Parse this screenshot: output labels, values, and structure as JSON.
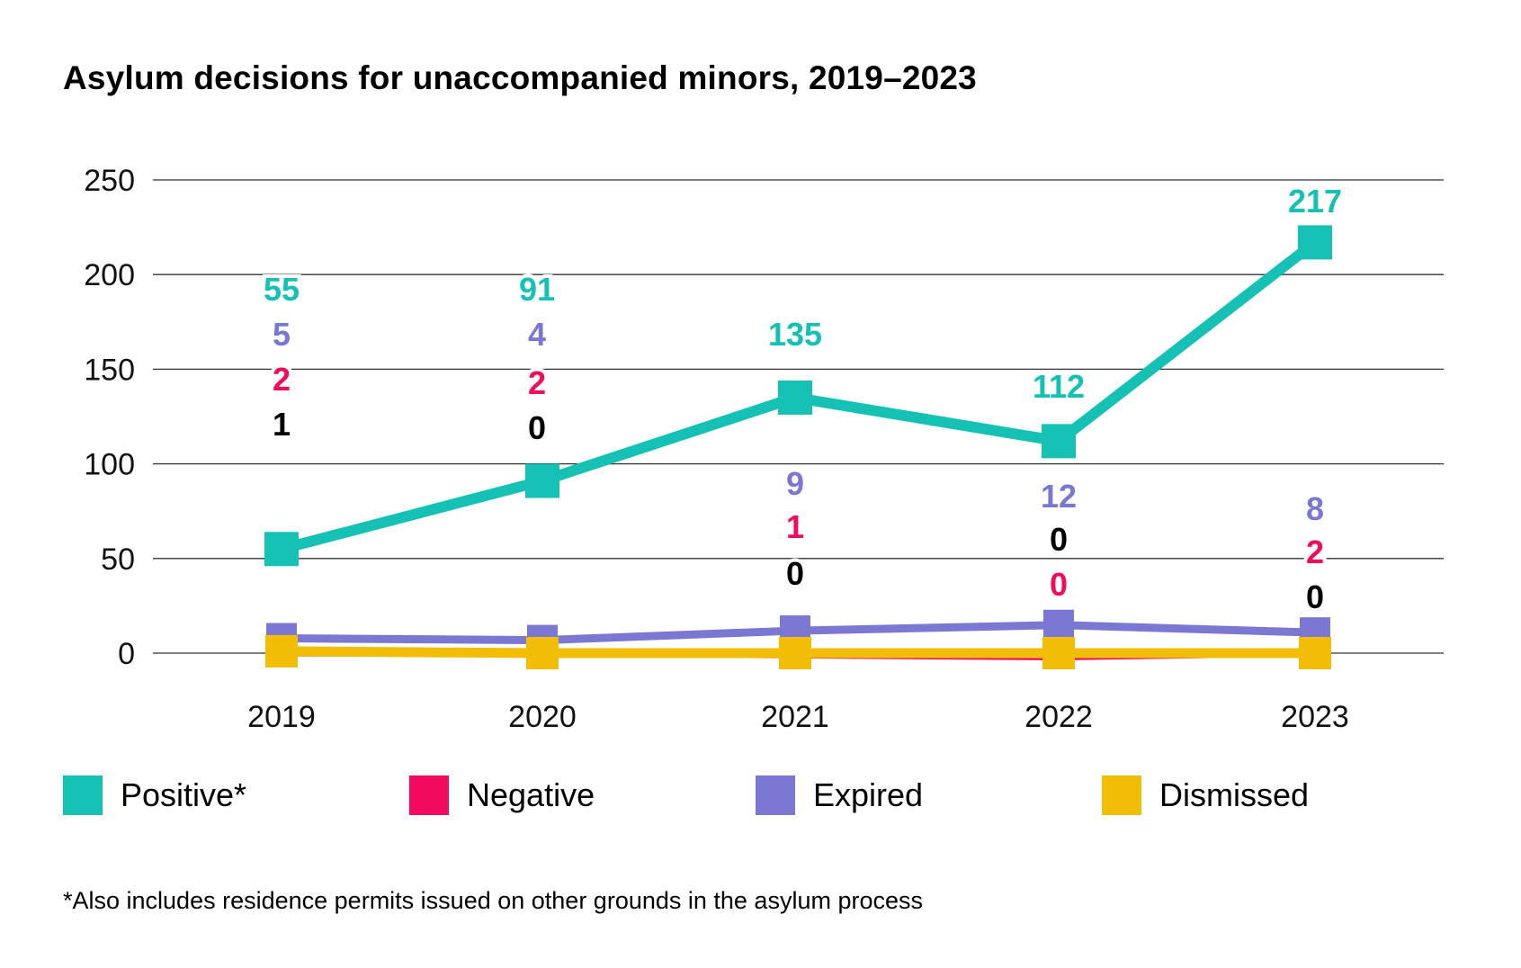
{
  "title": "Asylum decisions for unaccompanied minors, 2019–2023",
  "footnote": "*Also includes residence permits issued on other grounds in the asylum process",
  "legend": {
    "positive": "Positive*",
    "negative": "Negative",
    "expired": "Expired",
    "dismissed": "Dismissed"
  },
  "colors": {
    "positive": "#14c1b4",
    "negative": "#f20a5f",
    "expired": "#7a78d2",
    "dismissed": "#f2bd05"
  },
  "chart_data": {
    "type": "line",
    "title": "Asylum decisions for unaccompanied minors, 2019–2023",
    "categories": [
      "2019",
      "2020",
      "2021",
      "2022",
      "2023"
    ],
    "ylim": [
      0,
      250
    ],
    "yticks": [
      "0",
      "50",
      "100",
      "150",
      "200",
      "250"
    ],
    "grid": true,
    "legend_position": "bottom",
    "series": [
      {
        "key": "positive",
        "name": "Positive*",
        "color": "#14c1b4",
        "values": [
          55,
          91,
          135,
          112,
          217
        ]
      },
      {
        "key": "negative",
        "name": "Negative",
        "color": "#f20a5f",
        "values": [
          2,
          2,
          1,
          0,
          2
        ]
      },
      {
        "key": "expired",
        "name": "Expired",
        "color": "#7a78d2",
        "values": [
          5,
          4,
          9,
          12,
          8
        ]
      },
      {
        "key": "dismissed",
        "name": "Dismissed",
        "color": "#f2bd05",
        "values": [
          1,
          0,
          0,
          0,
          0
        ]
      }
    ],
    "data_labels": [
      [
        "55",
        "5",
        "2",
        "1"
      ],
      [
        "91",
        "4",
        "2",
        "0"
      ],
      [
        "135",
        "9",
        "1",
        "0"
      ],
      [
        "112",
        "12",
        "0",
        "0"
      ],
      [
        "217",
        "8",
        "2",
        "0"
      ]
    ]
  }
}
